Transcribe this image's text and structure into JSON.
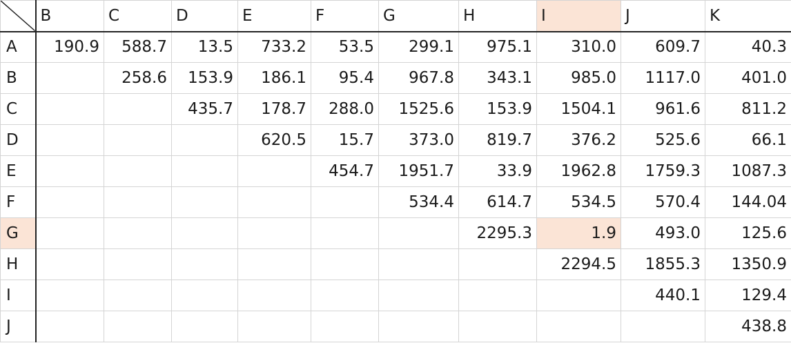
{
  "highlight_color": "#fbe4d6",
  "column_headers": [
    "B",
    "C",
    "D",
    "E",
    "F",
    "G",
    "H",
    "I",
    "J",
    "K"
  ],
  "highlighted_column": "I",
  "highlighted_row": "G",
  "rows": [
    {
      "label": "A",
      "cells": [
        "190.9",
        "588.7",
        "13.5",
        "733.2",
        "53.5",
        "299.1",
        "975.1",
        "310.0",
        "609.7",
        "40.3"
      ]
    },
    {
      "label": "B",
      "cells": [
        "",
        "258.6",
        "153.9",
        "186.1",
        "95.4",
        "967.8",
        "343.1",
        "985.0",
        "1117.0",
        "401.0"
      ]
    },
    {
      "label": "C",
      "cells": [
        "",
        "",
        "435.7",
        "178.7",
        "288.0",
        "1525.6",
        "153.9",
        "1504.1",
        "961.6",
        "811.2"
      ]
    },
    {
      "label": "D",
      "cells": [
        "",
        "",
        "",
        "620.5",
        "15.7",
        "373.0",
        "819.7",
        "376.2",
        "525.6",
        "66.1"
      ]
    },
    {
      "label": "E",
      "cells": [
        "",
        "",
        "",
        "",
        "454.7",
        "1951.7",
        "33.9",
        "1962.8",
        "1759.3",
        "1087.3"
      ]
    },
    {
      "label": "F",
      "cells": [
        "",
        "",
        "",
        "",
        "",
        "534.4",
        "614.7",
        "534.5",
        "570.4",
        "144.04"
      ]
    },
    {
      "label": "G",
      "cells": [
        "",
        "",
        "",
        "",
        "",
        "",
        "2295.3",
        "1.9",
        "493.0",
        "125.6"
      ]
    },
    {
      "label": "H",
      "cells": [
        "",
        "",
        "",
        "",
        "",
        "",
        "",
        "2294.5",
        "1855.3",
        "1350.9"
      ]
    },
    {
      "label": "I",
      "cells": [
        "",
        "",
        "",
        "",
        "",
        "",
        "",
        "",
        "440.1",
        "129.4"
      ]
    },
    {
      "label": "J",
      "cells": [
        "",
        "",
        "",
        "",
        "",
        "",
        "",
        "",
        "",
        "438.8"
      ]
    }
  ]
}
